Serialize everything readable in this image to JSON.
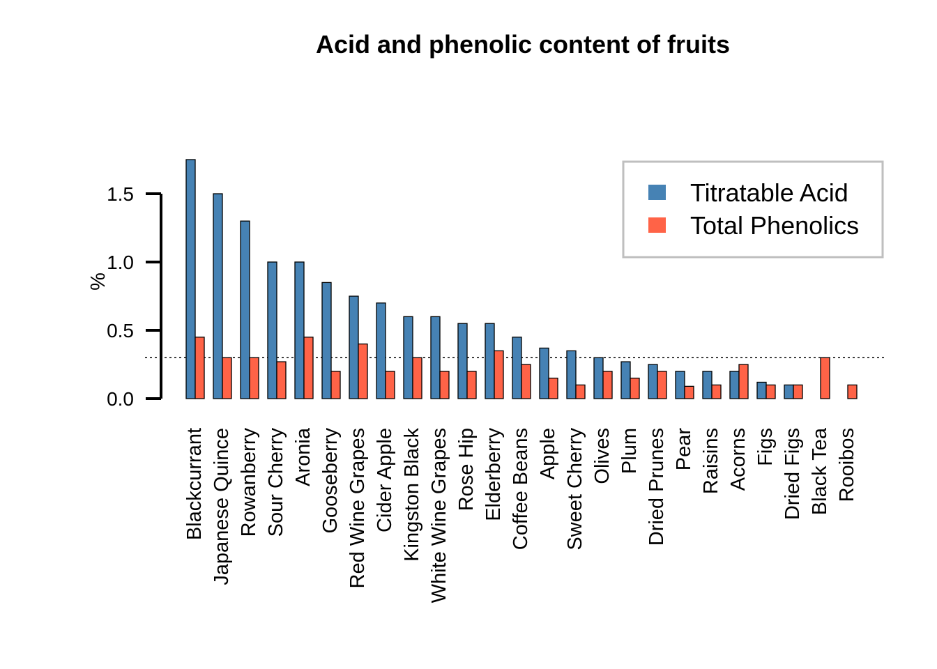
{
  "chart_data": {
    "type": "bar",
    "title": "Acid and phenolic content of fruits",
    "xlabel": "",
    "ylabel": "%",
    "ylim": [
      0,
      1.5
    ],
    "yticks": [
      "0.0",
      "0.5",
      "1.0",
      "1.5"
    ],
    "reference_line": 0.3,
    "legend_position": "top-right",
    "grid": false,
    "categories": [
      "Blackcurrant",
      "Japanese Quince",
      "Rowanberry",
      "Sour Cherry",
      "Aronia",
      "Gooseberry",
      "Red Wine Grapes",
      "Cider Apple",
      "Kingston Black",
      "White Wine Grapes",
      "Rose Hip",
      "Elderberry",
      "Coffee Beans",
      "Apple",
      "Sweet Cherry",
      "Olives",
      "Plum",
      "Dried Prunes",
      "Pear",
      "Raisins",
      "Acorns",
      "Figs",
      "Dried Figs",
      "Black Tea",
      "Rooibos"
    ],
    "series": [
      {
        "name": "Titratable Acid",
        "color": "#4682B4",
        "values": [
          1.75,
          1.5,
          1.3,
          1.0,
          1.0,
          0.85,
          0.75,
          0.7,
          0.6,
          0.6,
          0.55,
          0.55,
          0.45,
          0.37,
          0.35,
          0.3,
          0.27,
          0.25,
          0.2,
          0.2,
          0.2,
          0.12,
          0.1,
          0.0,
          0.0
        ]
      },
      {
        "name": "Total Phenolics",
        "color": "#FF6347",
        "values": [
          0.45,
          0.3,
          0.3,
          0.27,
          0.45,
          0.2,
          0.4,
          0.2,
          0.3,
          0.2,
          0.2,
          0.35,
          0.25,
          0.15,
          0.1,
          0.2,
          0.15,
          0.2,
          0.09,
          0.1,
          0.25,
          0.1,
          0.1,
          0.3,
          0.1
        ]
      }
    ]
  }
}
